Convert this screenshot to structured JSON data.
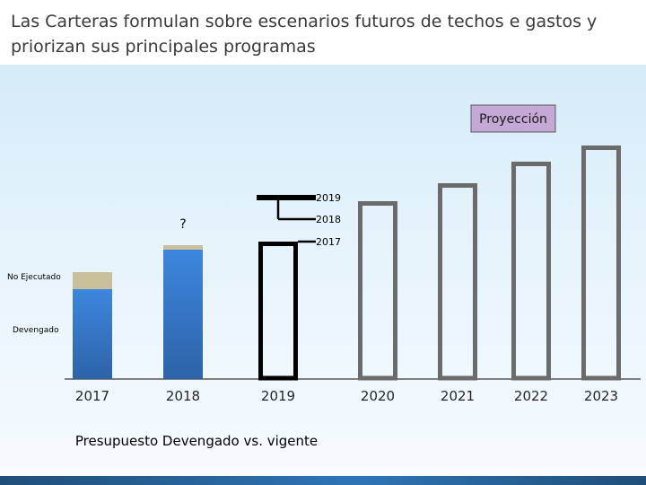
{
  "slide": {
    "title": "Las Carteras formulan sobre escenarios futuros de techos e gastos y priorizan sus principales programas"
  },
  "chart_data": {
    "type": "bar",
    "title": "Presupuesto Devengado vs. vigente",
    "categories": [
      "2017",
      "2018",
      "2019",
      "2020",
      "2021",
      "2022",
      "2023"
    ],
    "stack_labels": {
      "devengado": "Devengado",
      "no_ejecutado": "No Ejecutado"
    },
    "series": [
      {
        "name": "Devengado",
        "kind": "filled",
        "values": [
          100,
          144,
          null,
          null,
          null,
          null,
          null
        ],
        "color": "#3a7bd0"
      },
      {
        "name": "No Ejecutado",
        "kind": "filled",
        "values": [
          19,
          5,
          null,
          null,
          null,
          null,
          null
        ],
        "color": "#c8c09a"
      },
      {
        "name": "Vigente",
        "kind": "outline",
        "values": [
          null,
          null,
          153,
          198,
          218,
          242,
          260
        ],
        "colors": [
          "#000000",
          "#000000",
          "#000000",
          "#6b6b6b",
          "#6b6b6b",
          "#6b6b6b",
          "#6b6b6b"
        ]
      }
    ],
    "ceilings": [
      {
        "label": "2019",
        "value": 202
      },
      {
        "label": "2018",
        "value": 178
      },
      {
        "label": "2017",
        "value": 153
      }
    ],
    "unknown_marker": {
      "category": "2018",
      "text": "?"
    },
    "projection_label": "Proyección",
    "ylim": [
      0,
      270
    ],
    "grid": false,
    "colors": {
      "projection_badge": "#c5a8d6",
      "devengado_top": "#3d86de",
      "devengado_bottom": "#2d63a8",
      "no_ejecutado": "#c8c09a",
      "bottom_bar": "#2e75b6"
    }
  }
}
